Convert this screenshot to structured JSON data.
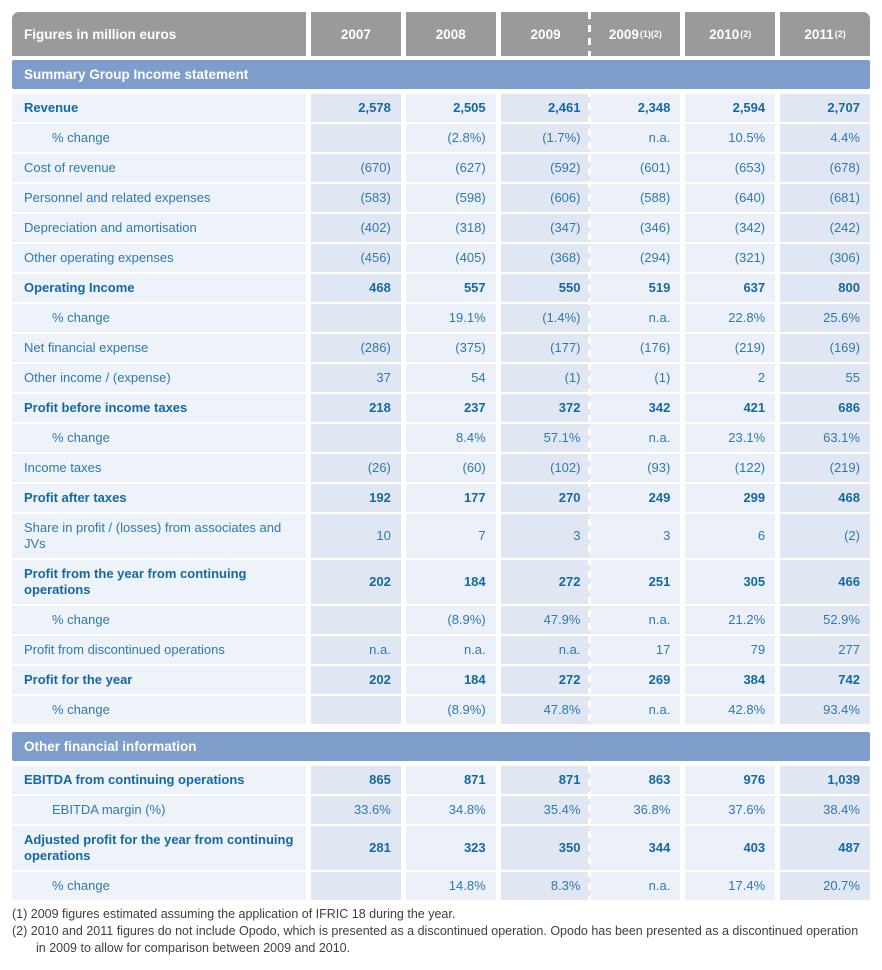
{
  "header": {
    "title": "Figures in million euros",
    "columns": [
      {
        "label": "2007",
        "sup": ""
      },
      {
        "label": "2008",
        "sup": ""
      },
      {
        "label": "2009",
        "sup": ""
      },
      {
        "label": "2009",
        "sup": "(1)(2)"
      },
      {
        "label": "2010",
        "sup": "(2)"
      },
      {
        "label": "2011",
        "sup": "(2)"
      }
    ]
  },
  "sections": [
    {
      "title": "Summary Group Income statement",
      "rows": [
        {
          "label": "Revenue",
          "bold": true,
          "indent": false,
          "values": [
            "2,578",
            "2,505",
            "2,461",
            "2,348",
            "2,594",
            "2,707"
          ]
        },
        {
          "label": "% change",
          "bold": false,
          "indent": true,
          "values": [
            "",
            "(2.8%)",
            "(1.7%)",
            "n.a.",
            "10.5%",
            "4.4%"
          ]
        },
        {
          "label": "Cost of revenue",
          "bold": false,
          "indent": false,
          "values": [
            "(670)",
            "(627)",
            "(592)",
            "(601)",
            "(653)",
            "(678)"
          ]
        },
        {
          "label": "Personnel and related expenses",
          "bold": false,
          "indent": false,
          "values": [
            "(583)",
            "(598)",
            "(606)",
            "(588)",
            "(640)",
            "(681)"
          ]
        },
        {
          "label": "Depreciation and amortisation",
          "bold": false,
          "indent": false,
          "values": [
            "(402)",
            "(318)",
            "(347)",
            "(346)",
            "(342)",
            "(242)"
          ]
        },
        {
          "label": "Other operating expenses",
          "bold": false,
          "indent": false,
          "values": [
            "(456)",
            "(405)",
            "(368)",
            "(294)",
            "(321)",
            "(306)"
          ]
        },
        {
          "label": "Operating Income",
          "bold": true,
          "indent": false,
          "values": [
            "468",
            "557",
            "550",
            "519",
            "637",
            "800"
          ]
        },
        {
          "label": "% change",
          "bold": false,
          "indent": true,
          "values": [
            "",
            "19.1%",
            "(1.4%)",
            "n.a.",
            "22.8%",
            "25.6%"
          ]
        },
        {
          "label": "Net financial expense",
          "bold": false,
          "indent": false,
          "values": [
            "(286)",
            "(375)",
            "(177)",
            "(176)",
            "(219)",
            "(169)"
          ]
        },
        {
          "label": "Other income / (expense)",
          "bold": false,
          "indent": false,
          "values": [
            "37",
            "54",
            "(1)",
            "(1)",
            "2",
            "55"
          ]
        },
        {
          "label": "Profit before income taxes",
          "bold": true,
          "indent": false,
          "values": [
            "218",
            "237",
            "372",
            "342",
            "421",
            "686"
          ]
        },
        {
          "label": "% change",
          "bold": false,
          "indent": true,
          "values": [
            "",
            "8.4%",
            "57.1%",
            "n.a.",
            "23.1%",
            "63.1%"
          ]
        },
        {
          "label": "Income taxes",
          "bold": false,
          "indent": false,
          "values": [
            "(26)",
            "(60)",
            "(102)",
            "(93)",
            "(122)",
            "(219)"
          ]
        },
        {
          "label": "Profit after taxes",
          "bold": true,
          "indent": false,
          "values": [
            "192",
            "177",
            "270",
            "249",
            "299",
            "468"
          ]
        },
        {
          "label": "Share in profit / (losses) from associates and JVs",
          "bold": false,
          "indent": false,
          "values": [
            "10",
            "7",
            "3",
            "3",
            "6",
            "(2)"
          ]
        },
        {
          "label": "Profit from the year from continuing operations",
          "bold": true,
          "indent": false,
          "values": [
            "202",
            "184",
            "272",
            "251",
            "305",
            "466"
          ]
        },
        {
          "label": "% change",
          "bold": false,
          "indent": true,
          "values": [
            "",
            "(8.9%)",
            "47.9%",
            "n.a.",
            "21.2%",
            "52.9%"
          ]
        },
        {
          "label": "Profit from discontinued operations",
          "bold": false,
          "indent": false,
          "values": [
            "n.a.",
            "n.a.",
            "n.a.",
            "17",
            "79",
            "277"
          ]
        },
        {
          "label": "Profit for the year",
          "bold": true,
          "indent": false,
          "values": [
            "202",
            "184",
            "272",
            "269",
            "384",
            "742"
          ]
        },
        {
          "label": "% change",
          "bold": false,
          "indent": true,
          "values": [
            "",
            "(8.9%)",
            "47.8%",
            "n.a.",
            "42.8%",
            "93.4%"
          ]
        }
      ]
    },
    {
      "title": "Other financial information",
      "rows": [
        {
          "label": "EBITDA from continuing operations",
          "bold": true,
          "indent": false,
          "values": [
            "865",
            "871",
            "871",
            "863",
            "976",
            "1,039"
          ]
        },
        {
          "label": "EBITDA margin (%)",
          "bold": false,
          "indent": true,
          "values": [
            "33.6%",
            "34.8%",
            "35.4%",
            "36.8%",
            "37.6%",
            "38.4%"
          ]
        },
        {
          "label": "Adjusted profit for the year from continuing operations",
          "bold": true,
          "indent": false,
          "values": [
            "281",
            "323",
            "350",
            "344",
            "403",
            "487"
          ]
        },
        {
          "label": "% change",
          "bold": false,
          "indent": true,
          "values": [
            "",
            "14.8%",
            "8.3%",
            "n.a.",
            "17.4%",
            "20.7%"
          ]
        }
      ]
    }
  ],
  "footnotes": [
    {
      "marker": "(1)",
      "text": "2009 figures estimated assuming the application of IFRIC 18 during the year."
    },
    {
      "marker": "(2)",
      "text": "2010 and 2011 figures do not include Opodo, which is presented as a discontinued operation. Opodo has been presented as a discontinued operation in 2009 to allow for comparison between 2009 and 2010."
    }
  ],
  "colors": {
    "header_bg": "#9a9a9a",
    "section_bg": "#7e9dca",
    "text_blue": "#2e7aab",
    "text_blue_bold": "#16699f",
    "cell_light": "#ecf0f8",
    "cell_dark": "#e1e7f2",
    "label_bg": "#eef2f9",
    "footnote_text": "#3f3f3f"
  }
}
